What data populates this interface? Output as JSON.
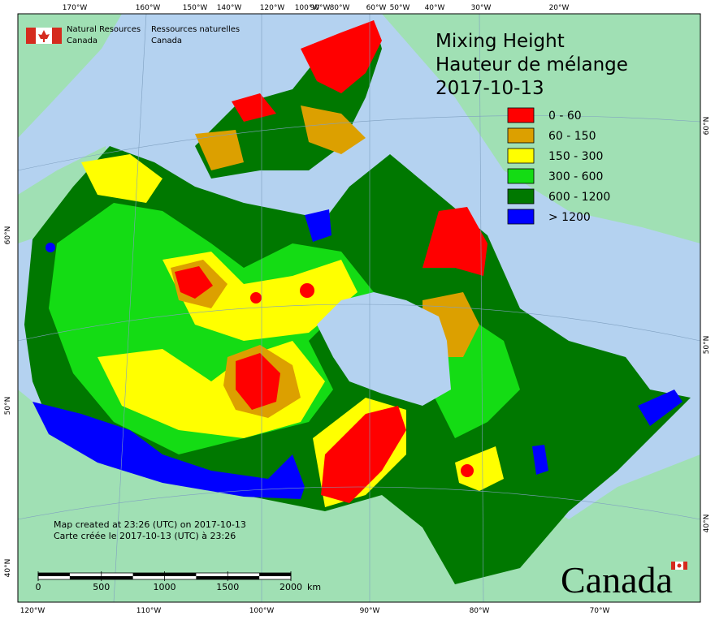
{
  "header": {
    "agency_en": [
      "Natural Resources",
      "Canada"
    ],
    "agency_fr": [
      "Ressources naturelles",
      "Canada"
    ]
  },
  "title": [
    "Mixing Height",
    "Hauteur de mélange",
    "2017-10-13"
  ],
  "legend": [
    {
      "label": "0 - 60",
      "color": "#ff0000"
    },
    {
      "label": "60 - 150",
      "color": "#dca000"
    },
    {
      "label": "150 - 300",
      "color": "#ffff00"
    },
    {
      "label": "300 - 600",
      "color": "#14dc14"
    },
    {
      "label": "600 - 1200",
      "color": "#007800"
    },
    {
      "label": "> 1200",
      "color": "#0000ff"
    }
  ],
  "graticule": {
    "top": [
      "170°W",
      "160°W",
      "150°W",
      "140°W",
      "120°W",
      "100°W",
      "90°W",
      "80°W",
      "60°W",
      "50°W",
      "40°W",
      "30°W",
      "20°W"
    ],
    "bottom": [
      "120°W",
      "110°W",
      "100°W",
      "90°W",
      "80°W",
      "70°W"
    ],
    "left": [
      "60°N",
      "50°N",
      "40°N"
    ],
    "right": [
      "60°N",
      "50°N",
      "40°N"
    ]
  },
  "notes": [
    "Map created at 23:26 (UTC) on 2017-10-13",
    "Carte créée le 2017-10-13 (UTC) à 23:26"
  ],
  "scale": {
    "ticks": [
      0,
      500,
      1000,
      1500,
      2000
    ],
    "unit": "km"
  },
  "wordmark": "Canada"
}
